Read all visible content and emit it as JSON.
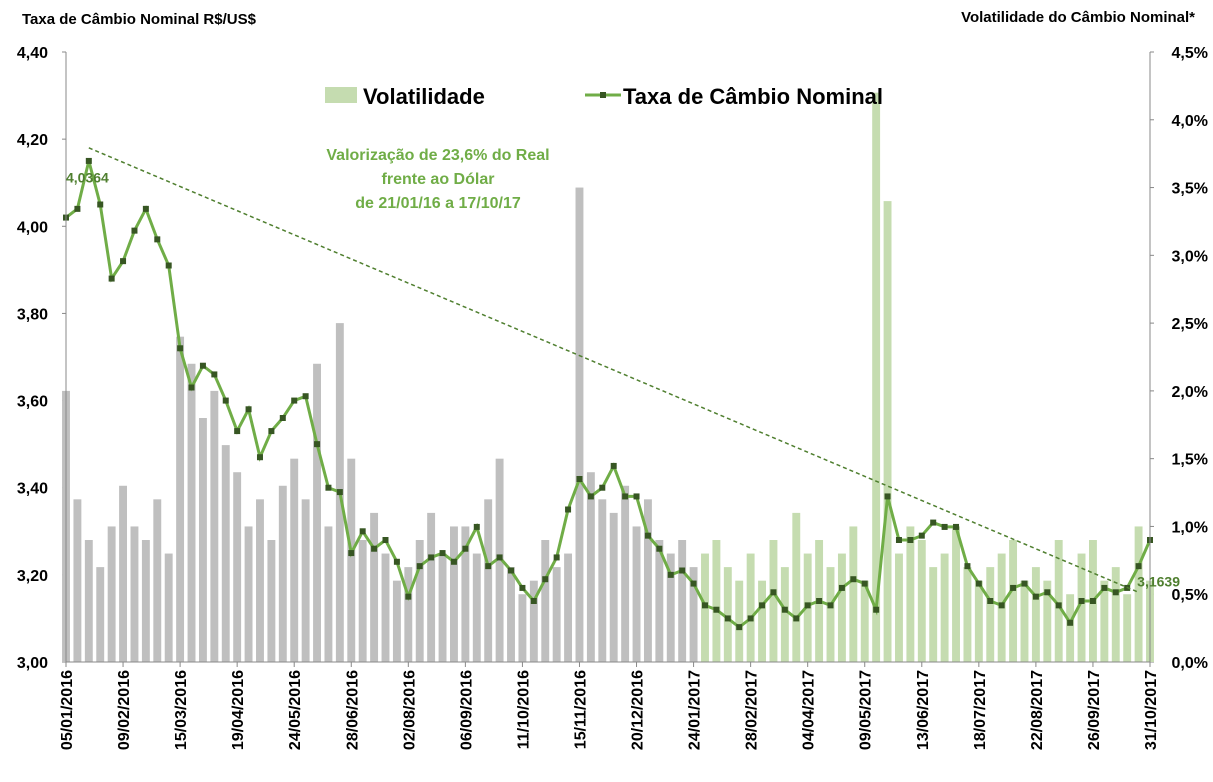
{
  "chart_data": {
    "type": "bar_line",
    "y_axis_title": "Taxa de Câmbio Nominal R$/US$",
    "y2_axis_title": "Volatilidade do Câmbio Nominal*",
    "categories": [
      "05/01/2016",
      null,
      null,
      null,
      null,
      "09/02/2016",
      null,
      null,
      null,
      null,
      "15/03/2016",
      null,
      null,
      null,
      null,
      "19/04/2016",
      null,
      null,
      null,
      null,
      "24/05/2016",
      null,
      null,
      null,
      null,
      "28/06/2016",
      null,
      null,
      null,
      null,
      "02/08/2016",
      null,
      null,
      null,
      null,
      "06/09/2016",
      null,
      null,
      null,
      null,
      "11/10/2016",
      null,
      null,
      null,
      null,
      "15/11/2016",
      null,
      null,
      null,
      null,
      "20/12/2016",
      null,
      null,
      null,
      null,
      "24/01/2017",
      null,
      null,
      null,
      null,
      "28/02/2017",
      null,
      null,
      null,
      null,
      "04/04/2017",
      null,
      null,
      null,
      null,
      "09/05/2017",
      null,
      null,
      null,
      null,
      "13/06/2017",
      null,
      null,
      null,
      null,
      "18/07/2017",
      null,
      null,
      null,
      null,
      "22/08/2017",
      null,
      null,
      null,
      null,
      "26/09/2017",
      null,
      null,
      null,
      null,
      "31/10/2017"
    ],
    "series": [
      {
        "name": "Volatilidade",
        "type": "bar",
        "axis": "y2",
        "color": "#c5dcb0",
        "prior_color": "#bfbfbf",
        "color_change_at": "24/01/2017",
        "values": [
          2.0,
          1.2,
          0.9,
          0.7,
          1.0,
          1.3,
          1.0,
          0.9,
          1.2,
          0.8,
          2.4,
          2.2,
          1.8,
          2.0,
          1.6,
          1.4,
          1.0,
          1.2,
          0.9,
          1.3,
          1.5,
          1.2,
          2.2,
          1.0,
          2.5,
          1.5,
          0.9,
          1.1,
          0.8,
          0.6,
          0.7,
          0.9,
          1.1,
          0.8,
          1.0,
          1.0,
          0.8,
          1.2,
          1.5,
          0.7,
          0.5,
          0.6,
          0.9,
          0.7,
          0.8,
          3.5,
          1.4,
          1.2,
          1.1,
          1.3,
          1.0,
          1.2,
          0.9,
          0.8,
          0.9,
          0.7,
          0.8,
          0.9,
          0.7,
          0.6,
          0.8,
          0.6,
          0.9,
          0.7,
          1.1,
          0.8,
          0.9,
          0.7,
          0.8,
          1.0,
          0.6,
          4.2,
          3.4,
          0.8,
          1.0,
          0.9,
          0.7,
          0.8,
          1.0,
          0.7,
          0.6,
          0.7,
          0.8,
          0.9,
          0.6,
          0.7,
          0.6,
          0.9,
          0.5,
          0.8,
          0.9,
          0.6,
          0.7,
          0.5,
          1.0,
          0.6
        ]
      },
      {
        "name": "Taxa de Câmbio Nominal",
        "type": "line",
        "axis": "y",
        "color": "#70ad47",
        "marker_color": "#375623",
        "values": [
          4.02,
          4.04,
          4.15,
          4.05,
          3.88,
          3.92,
          3.99,
          4.04,
          3.97,
          3.91,
          3.72,
          3.63,
          3.68,
          3.66,
          3.6,
          3.53,
          3.58,
          3.47,
          3.53,
          3.56,
          3.6,
          3.61,
          3.5,
          3.4,
          3.39,
          3.25,
          3.3,
          3.26,
          3.28,
          3.23,
          3.15,
          3.22,
          3.24,
          3.25,
          3.23,
          3.26,
          3.31,
          3.22,
          3.24,
          3.21,
          3.17,
          3.14,
          3.19,
          3.24,
          3.35,
          3.42,
          3.38,
          3.4,
          3.45,
          3.38,
          3.38,
          3.29,
          3.26,
          3.2,
          3.21,
          3.18,
          3.13,
          3.12,
          3.1,
          3.08,
          3.1,
          3.13,
          3.16,
          3.12,
          3.1,
          3.13,
          3.14,
          3.13,
          3.17,
          3.19,
          3.18,
          3.12,
          3.38,
          3.28,
          3.28,
          3.29,
          3.32,
          3.31,
          3.31,
          3.22,
          3.18,
          3.14,
          3.13,
          3.17,
          3.18,
          3.15,
          3.16,
          3.13,
          3.09,
          3.14,
          3.14,
          3.17,
          3.16,
          3.17,
          3.22,
          3.28
        ]
      }
    ],
    "ylim": [
      3.0,
      4.4
    ],
    "yticks": [
      {
        "value": 3.0,
        "label": "3,00"
      },
      {
        "value": 3.2,
        "label": "3,20"
      },
      {
        "value": 3.4,
        "label": "3,40"
      },
      {
        "value": 3.6,
        "label": "3,60"
      },
      {
        "value": 3.8,
        "label": "3,80"
      },
      {
        "value": 4.0,
        "label": "4,00"
      },
      {
        "value": 4.2,
        "label": "4,20"
      },
      {
        "value": 4.4,
        "label": "4,40"
      }
    ],
    "y2lim": [
      0,
      4.5
    ],
    "y2ticks": [
      {
        "value": 0,
        "label": "0,0%"
      },
      {
        "value": 0.5,
        "label": "0,5%"
      },
      {
        "value": 1.0,
        "label": "1,0%"
      },
      {
        "value": 1.5,
        "label": "1,5%"
      },
      {
        "value": 2.0,
        "label": "2,0%"
      },
      {
        "value": 2.5,
        "label": "2,5%"
      },
      {
        "value": 3.0,
        "label": "3,0%"
      },
      {
        "value": 3.5,
        "label": "3,5%"
      },
      {
        "value": 4.0,
        "label": "4,0%"
      },
      {
        "value": 4.5,
        "label": "4,5%"
      }
    ],
    "annotation_lines": [
      "Valorização de 23,6% do Real",
      "frente ao Dólar",
      "de 21/01/16 a 17/10/17"
    ],
    "trend_line": {
      "start": 4.18,
      "end": 3.16
    },
    "point_labels": [
      {
        "text": "4,0364",
        "value": 4.0364
      },
      {
        "text": "3,1639",
        "value": 3.1639
      }
    ],
    "legend": "top"
  }
}
